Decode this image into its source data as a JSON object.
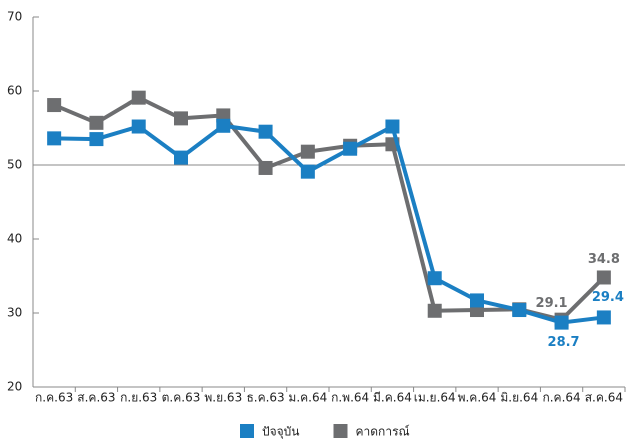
{
  "chart_data": {
    "type": "line",
    "categories": [
      "ก.ค.63",
      "ส.ค.63",
      "ก.ย.63",
      "ต.ค.63",
      "พ.ย.63",
      "ธ.ค.63",
      "ม.ค.64",
      "ก.พ.64",
      "มี.ค.64",
      "เม.ย.64",
      "พ.ค.64",
      "มิ.ย.64",
      "ก.ค.64",
      "ส.ค.64"
    ],
    "series": [
      {
        "name": "ปัจจุบัน",
        "color": "#1b7fc3",
        "values": [
          53.6,
          53.5,
          55.2,
          51.0,
          55.3,
          54.5,
          49.1,
          52.2,
          55.2,
          34.7,
          31.7,
          30.4,
          28.7,
          29.4
        ]
      },
      {
        "name": "คาดการณ์",
        "color": "#6d6e70",
        "values": [
          58.1,
          55.7,
          59.1,
          56.3,
          56.7,
          49.6,
          51.8,
          52.6,
          52.8,
          30.3,
          30.4,
          30.5,
          29.1,
          34.8
        ]
      }
    ],
    "ylim": [
      20,
      70
    ],
    "yticks": [
      20,
      30,
      40,
      50,
      60,
      70
    ],
    "hline": 50
  }
}
